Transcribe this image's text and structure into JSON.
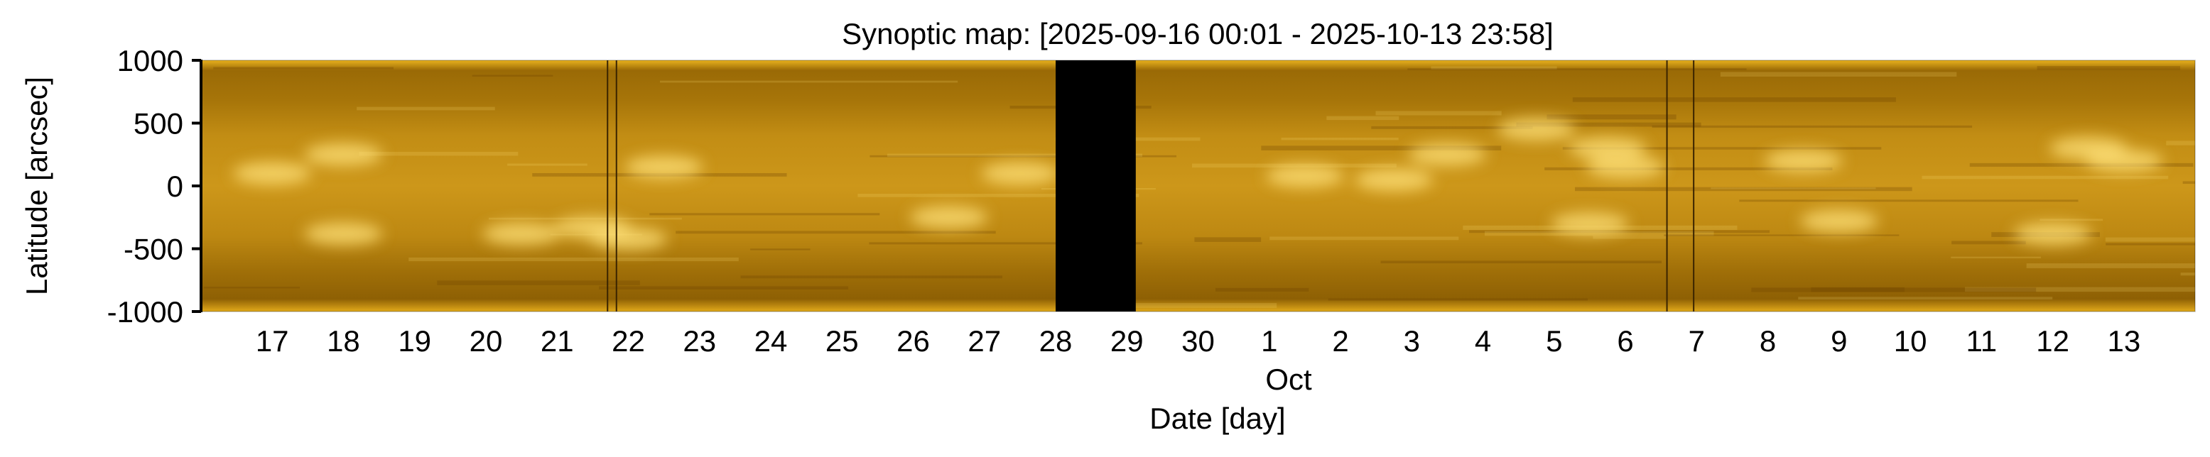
{
  "chart_data": {
    "type": "heatmap",
    "title": "Synoptic map: [2025-09-16 00:01 - 2025-10-13 23:58]",
    "xlabel": "Date [day]",
    "ylabel": "Latitude [arcsec]",
    "x_axis": {
      "scale": "time",
      "range": [
        "2025-09-16 00:01",
        "2025-10-13 23:58"
      ],
      "ticks": [
        {
          "date": "2025-09-17",
          "label": "17"
        },
        {
          "date": "2025-09-18",
          "label": "18"
        },
        {
          "date": "2025-09-19",
          "label": "19"
        },
        {
          "date": "2025-09-20",
          "label": "20"
        },
        {
          "date": "2025-09-21",
          "label": "21"
        },
        {
          "date": "2025-09-22",
          "label": "22"
        },
        {
          "date": "2025-09-23",
          "label": "23"
        },
        {
          "date": "2025-09-24",
          "label": "24"
        },
        {
          "date": "2025-09-25",
          "label": "25"
        },
        {
          "date": "2025-09-26",
          "label": "26"
        },
        {
          "date": "2025-09-27",
          "label": "27"
        },
        {
          "date": "2025-09-28",
          "label": "28"
        },
        {
          "date": "2025-09-29",
          "label": "29"
        },
        {
          "date": "2025-09-30",
          "label": "30"
        },
        {
          "date": "2025-10-01",
          "label": "1"
        },
        {
          "date": "2025-10-02",
          "label": "2"
        },
        {
          "date": "2025-10-03",
          "label": "3"
        },
        {
          "date": "2025-10-04",
          "label": "4"
        },
        {
          "date": "2025-10-05",
          "label": "5"
        },
        {
          "date": "2025-10-06",
          "label": "6"
        },
        {
          "date": "2025-10-07",
          "label": "7"
        },
        {
          "date": "2025-10-08",
          "label": "8"
        },
        {
          "date": "2025-10-09",
          "label": "9"
        },
        {
          "date": "2025-10-10",
          "label": "10"
        },
        {
          "date": "2025-10-11",
          "label": "11"
        },
        {
          "date": "2025-10-12",
          "label": "12"
        },
        {
          "date": "2025-10-13",
          "label": "13"
        }
      ],
      "month_label": "Oct"
    },
    "y_axis": {
      "range": [
        -1000,
        1000
      ],
      "ticks": [
        {
          "value": 1000,
          "label": "1000"
        },
        {
          "value": 500,
          "label": "500"
        },
        {
          "value": 0,
          "label": "0"
        },
        {
          "value": -500,
          "label": "-500"
        },
        {
          "value": -1000,
          "label": "-1000"
        }
      ]
    },
    "colormap": "solar orange (dark amber to bright yellow)",
    "colors": {
      "low": "#6b4200",
      "mid": "#c8920e",
      "high": "#ffe27a",
      "gap": "#000000"
    },
    "data_gaps": [
      {
        "start": "2025-09-28 00:00",
        "end": "2025-09-29 03:00"
      }
    ],
    "thin_gap_lines": [
      "2025-09-21 17:00",
      "2025-09-21 20:00",
      "2025-10-06 14:00",
      "2025-10-06 23:00"
    ],
    "bright_regions": [
      {
        "date": "2025-09-17 00:00",
        "lat": 100
      },
      {
        "date": "2025-09-18 00:00",
        "lat": 250
      },
      {
        "date": "2025-09-18 00:00",
        "lat": -380
      },
      {
        "date": "2025-09-20 12:00",
        "lat": -380
      },
      {
        "date": "2025-09-21 12:00",
        "lat": -330
      },
      {
        "date": "2025-09-22 00:00",
        "lat": -420
      },
      {
        "date": "2025-09-22 12:00",
        "lat": 150
      },
      {
        "date": "2025-09-26 12:00",
        "lat": -250
      },
      {
        "date": "2025-09-27 12:00",
        "lat": 100
      },
      {
        "date": "2025-10-01 12:00",
        "lat": 80
      },
      {
        "date": "2025-10-02 18:00",
        "lat": 50
      },
      {
        "date": "2025-10-03 12:00",
        "lat": 250
      },
      {
        "date": "2025-10-04 18:00",
        "lat": 450
      },
      {
        "date": "2025-10-05 18:00",
        "lat": 300
      },
      {
        "date": "2025-10-05 12:00",
        "lat": -300
      },
      {
        "date": "2025-10-06 00:00",
        "lat": 150
      },
      {
        "date": "2025-10-08 12:00",
        "lat": 200
      },
      {
        "date": "2025-10-09 00:00",
        "lat": -280
      },
      {
        "date": "2025-10-12 12:00",
        "lat": 300
      },
      {
        "date": "2025-10-12 00:00",
        "lat": -380
      },
      {
        "date": "2025-10-13 00:00",
        "lat": 200
      }
    ],
    "grid": false,
    "legend": false
  }
}
